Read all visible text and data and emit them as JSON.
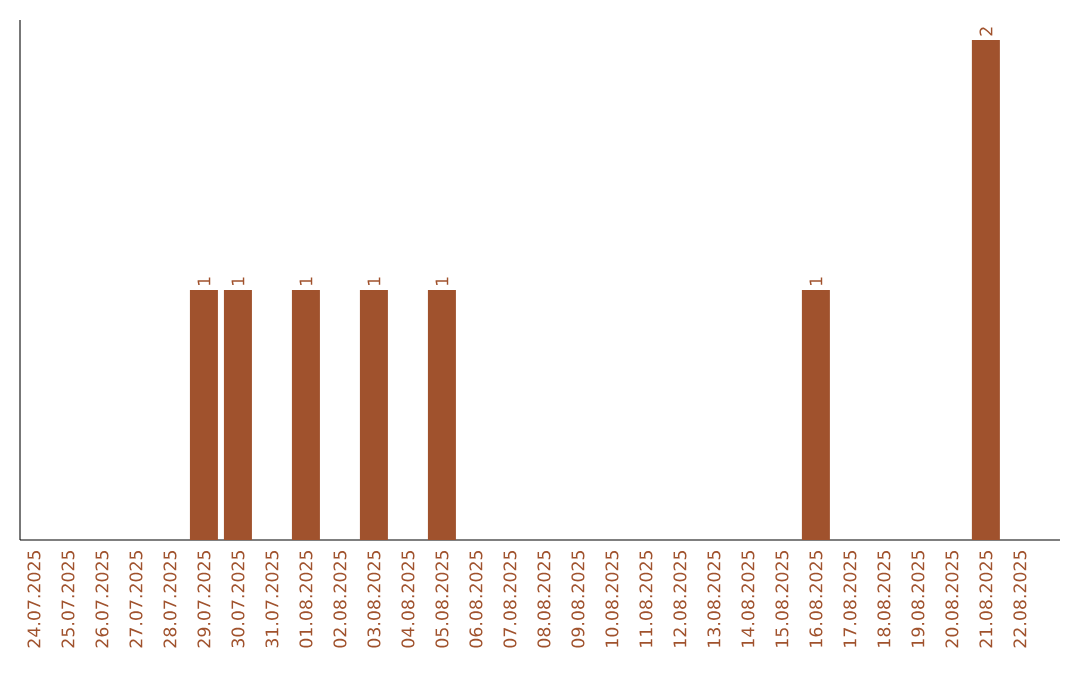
{
  "chart_data": {
    "type": "bar",
    "categories": [
      "24.07.2025",
      "25.07.2025",
      "26.07.2025",
      "27.07.2025",
      "28.07.2025",
      "29.07.2025",
      "30.07.2025",
      "31.07.2025",
      "01.08.2025",
      "02.08.2025",
      "03.08.2025",
      "04.08.2025",
      "05.08.2025",
      "06.08.2025",
      "07.08.2025",
      "08.08.2025",
      "09.08.2025",
      "10.08.2025",
      "11.08.2025",
      "12.08.2025",
      "13.08.2025",
      "14.08.2025",
      "15.08.2025",
      "16.08.2025",
      "17.08.2025",
      "18.08.2025",
      "19.08.2025",
      "20.08.2025",
      "21.08.2025",
      "22.08.2025"
    ],
    "values": [
      0,
      0,
      0,
      0,
      0,
      1,
      1,
      0,
      1,
      0,
      1,
      0,
      1,
      0,
      0,
      0,
      0,
      0,
      0,
      0,
      0,
      0,
      0,
      1,
      0,
      0,
      0,
      0,
      2,
      0
    ],
    "value_labels": [
      null,
      null,
      null,
      null,
      null,
      "1",
      "1",
      null,
      "1",
      null,
      "1",
      null,
      "1",
      null,
      null,
      null,
      null,
      null,
      null,
      null,
      null,
      null,
      null,
      "1",
      null,
      null,
      null,
      null,
      "2",
      null
    ],
    "color": "#a0522d",
    "ylim": [
      0,
      2.08
    ],
    "tick_labels": "x"
  }
}
